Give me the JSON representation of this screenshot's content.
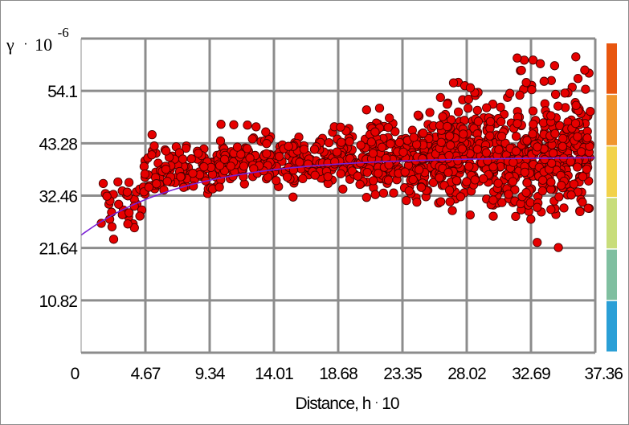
{
  "chart_data": {
    "type": "scatter",
    "title": "",
    "ylabel": {
      "symbol": "γ",
      "dot": "·",
      "base": "10",
      "exponent": "-6"
    },
    "xlabel": {
      "text": "Distance, h",
      "dot": "·",
      "factor": "10"
    },
    "x_ticks": [
      "0",
      "4.67",
      "9.34",
      "14.01",
      "18.68",
      "23.35",
      "28.02",
      "32.69",
      "37.36"
    ],
    "y_ticks": [
      "10.82",
      "21.64",
      "32.46",
      "43.28",
      "54.1"
    ],
    "xlim": [
      0,
      37.36
    ],
    "ylim": [
      0,
      64.92
    ],
    "grid": true,
    "point_color": "#e60000",
    "point_edge": "#4a0000",
    "model_curve": {
      "name": "",
      "color": "#7a1fd6",
      "kind": "exponential",
      "nugget": 24.3,
      "sill": 40.4,
      "range": 23.0,
      "x_end": 37.36
    },
    "clusters": [
      {
        "x": [
          1.0,
          4.5
        ],
        "y_mean": 30.0,
        "y_spread": 4.5,
        "n": 35
      },
      {
        "x": [
          4.5,
          10.0
        ],
        "y_mean": 37.5,
        "y_spread": 4.5,
        "n": 110
      },
      {
        "x": [
          10.0,
          20.0
        ],
        "y_mean": 39.5,
        "y_spread": 4.5,
        "n": 260
      },
      {
        "x": [
          20.0,
          26.0
        ],
        "y_mean": 39.5,
        "y_spread": 6.5,
        "n": 240
      },
      {
        "x": [
          26.0,
          31.0
        ],
        "y_mean": 41.0,
        "y_spread": 9.0,
        "n": 260
      },
      {
        "x": [
          31.0,
          37.0
        ],
        "y_mean": 41.0,
        "y_spread": 11.5,
        "n": 330
      }
    ],
    "color_scale": [
      "#e8560f",
      "#f0952e",
      "#f2d24a",
      "#c8dd7a",
      "#7fbfa0",
      "#2a9fd6"
    ]
  }
}
